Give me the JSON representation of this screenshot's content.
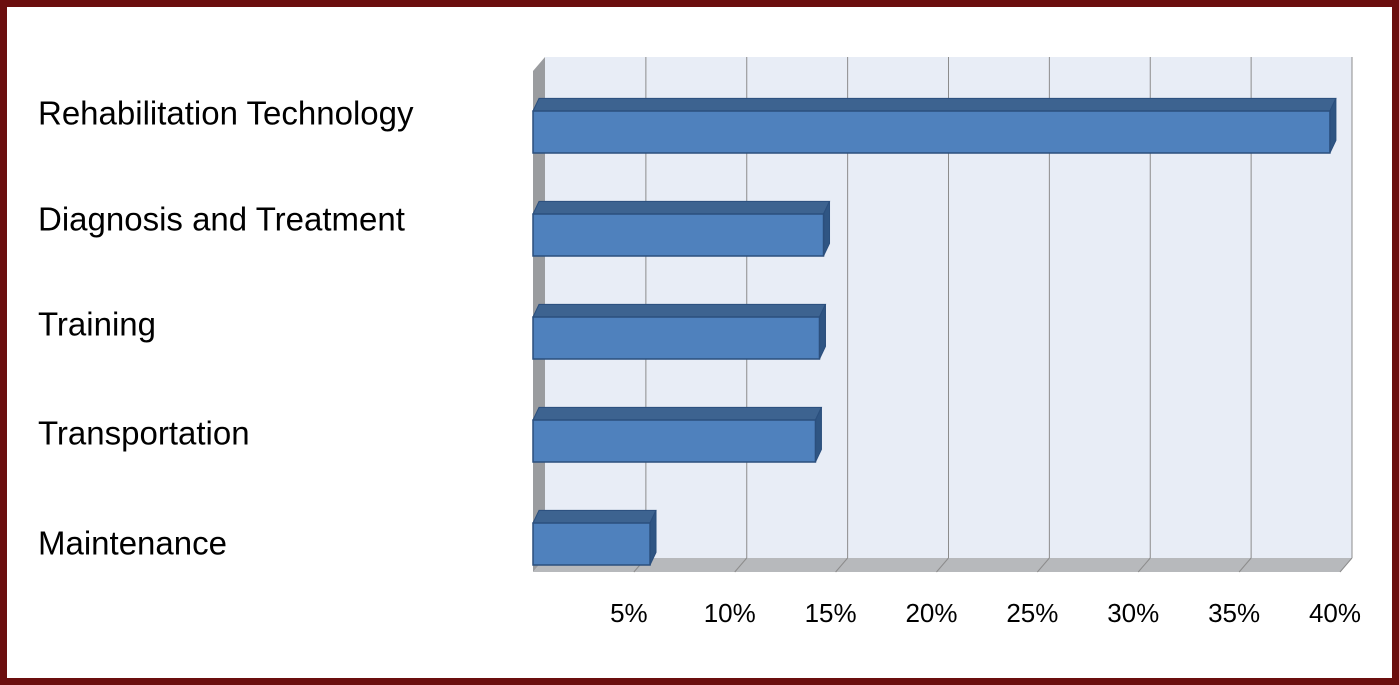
{
  "chart_data": {
    "type": "bar",
    "orientation": "horizontal",
    "style": "3d",
    "categories": [
      "Rehabilitation Technology",
      "Diagnosis and Treatment",
      "Training",
      "Transportation",
      "Maintenance"
    ],
    "values": [
      39.5,
      14.4,
      14.2,
      14.0,
      5.8
    ],
    "unit": "%",
    "xlim": [
      0,
      40
    ],
    "xticks": [
      "5%",
      "10%",
      "15%",
      "20%",
      "25%",
      "30%",
      "35%",
      "40%"
    ],
    "grid": "vertical",
    "legend": "none",
    "colors": {
      "bar_face": "#4f81bd",
      "bar_top": "#3d6390",
      "bar_side": "#2f5583",
      "bar_edge": "#2b4f7d",
      "plot_bg": "#e8edf6",
      "side_wall": "#9a9c9f",
      "floor": "#b7b9bc",
      "grid": "#8c8c8c",
      "frame_border": "#6b0e0e"
    }
  }
}
